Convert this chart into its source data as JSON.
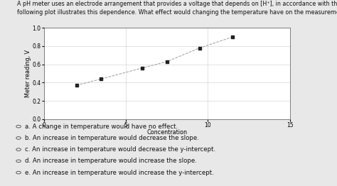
{
  "title_line1": "A pH meter uses an electrode arrangement that provides a voltage that depends on [H⁺], in accordance with the Nernst equation. The",
  "title_line2": "following plot illustrates this dependence. What effect would changing the temperature have on the measurement and this plot?",
  "xlabel": "Concentration",
  "ylabel": "Meter reading, V",
  "xlim": [
    0,
    15
  ],
  "ylim": [
    0,
    1.0
  ],
  "xticks": [
    0,
    5,
    10,
    15
  ],
  "yticks": [
    0,
    0.2,
    0.4,
    0.6,
    0.8,
    1.0
  ],
  "data_x": [
    2.0,
    3.5,
    6.0,
    7.5,
    9.5,
    11.5
  ],
  "data_y": [
    0.37,
    0.44,
    0.56,
    0.63,
    0.78,
    0.9
  ],
  "line_color": "#999999",
  "marker_color": "#222222",
  "bg_color": "#e8e8e8",
  "plot_bg": "#ffffff",
  "choices": [
    "a. A change in temperature would have no effect.",
    "b. An increase in temperature would decrease the slope.",
    "c. An increase in temperature would decrease the y-intercept.",
    "d. An increase in temperature would increase the slope.",
    "e. An increase in temperature would increase the y-intercept."
  ],
  "title_fontsize": 5.8,
  "axis_label_fontsize": 5.8,
  "tick_fontsize": 5.5,
  "choice_fontsize": 6.2
}
